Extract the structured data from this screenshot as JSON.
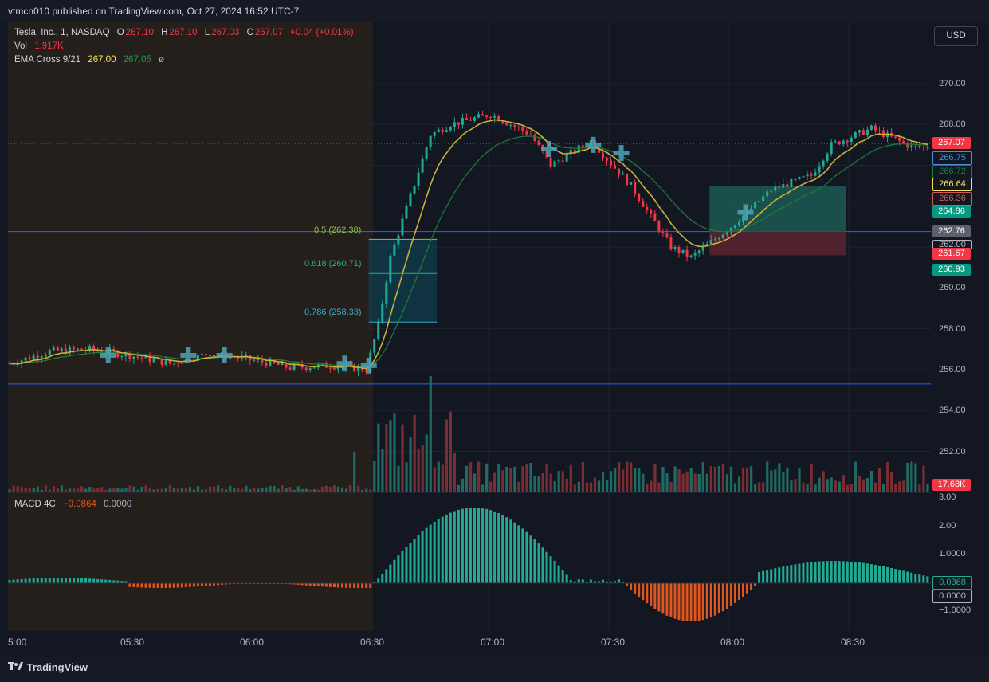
{
  "header": {
    "published": "vtmcn010 published on TradingView.com, Oct 27, 2024 16:52 UTC-7"
  },
  "legend": {
    "symbol": "Tesla, Inc., 1, NASDAQ",
    "o_label": "O",
    "o_value": "267.10",
    "h_label": "H",
    "h_value": "267.10",
    "l_label": "L",
    "l_value": "267.03",
    "c_label": "C",
    "c_value": "267.07",
    "change": "+0.04 (+0.01%)",
    "vol_label": "Vol",
    "vol_value": "1.917K",
    "ema_label": "EMA Cross 9/21",
    "ema_fast": "267.00",
    "ema_slow": "267.05",
    "ema_extra": "ø",
    "macd_label": "MACD 4C",
    "macd_value": "−0.0864",
    "macd_zero": "0.0000"
  },
  "currency": "USD",
  "price_axis": [
    "270.00",
    "268.00",
    "266.00",
    "264.00",
    "262.00",
    "260.00",
    "258.00",
    "256.00",
    "254.00",
    "252.00"
  ],
  "price_tags": [
    {
      "text": "267.07",
      "bg": "#f23645",
      "fg": "#ffffff"
    },
    {
      "text": "266.75",
      "bg": "#131722",
      "fg": "#4a90d9"
    },
    {
      "text": "266.72",
      "bg": "#131722",
      "fg": "#1b7f3c"
    },
    {
      "text": "266.64",
      "bg": "#131722",
      "fg": "#f7e35a"
    },
    {
      "text": "266.36",
      "bg": "#131722",
      "fg": "#d45a5a"
    },
    {
      "text": "264.86",
      "bg": "#089981",
      "fg": "#ffffff"
    },
    {
      "text": "262.76",
      "bg": "#5d606b",
      "fg": "#ffffff"
    },
    {
      "text": "262.00",
      "bg": "#131722",
      "fg": "#b2b5be"
    },
    {
      "text": "261.67",
      "bg": "#f23645",
      "fg": "#ffffff"
    },
    {
      "text": "260.93",
      "bg": "#089981",
      "fg": "#ffffff"
    },
    {
      "text": "17.68K",
      "bg": "#f23645",
      "fg": "#ffffff"
    }
  ],
  "macd_axis": [
    "3.00",
    "2.00",
    "1.0000",
    "−1.0000"
  ],
  "macd_tags": [
    {
      "text": "0.0368",
      "bg": "#131722",
      "fg": "#22ab94"
    },
    {
      "text": "0.0000",
      "bg": "#131722",
      "fg": "#b2b5be"
    }
  ],
  "time_axis": [
    "5:00",
    "05:30",
    "06:00",
    "06:30",
    "07:00",
    "07:30",
    "08:00",
    "08:30"
  ],
  "fib_labels": [
    {
      "text": "0.5 (262.38)",
      "color": "#8fbf4a"
    },
    {
      "text": "0.618 (260.71)",
      "color": "#22ab94"
    },
    {
      "text": "0.786 (258.33)",
      "color": "#3aa7c7"
    }
  ],
  "footer": {
    "brand": "TradingView"
  },
  "colors": {
    "up": "#22ab94",
    "down": "#f23645",
    "ema_fast": "#c9b037",
    "ema_slow": "#1b7f3c",
    "hline": "#2962ff",
    "macd_up": "#22ab94",
    "macd_down": "#e0561f"
  },
  "chart_data": {
    "type": "candlestick",
    "symbol": "TSLA",
    "timeframe": "1",
    "y_range": [
      251.0,
      271.0
    ],
    "horizontal_lines": [
      262.76,
      255.3
    ],
    "last_price_line": 267.07,
    "fibonacci": [
      {
        "level": "0.5",
        "price": 262.38
      },
      {
        "level": "0.618",
        "price": 260.71
      },
      {
        "level": "0.786",
        "price": 258.33
      }
    ],
    "close_path": [
      {
        "t": "05:00",
        "p": 256.3
      },
      {
        "t": "05:10",
        "p": 256.9
      },
      {
        "t": "05:20",
        "p": 257.0
      },
      {
        "t": "05:30",
        "p": 256.7
      },
      {
        "t": "05:40",
        "p": 256.3
      },
      {
        "t": "05:50",
        "p": 256.8
      },
      {
        "t": "06:00",
        "p": 256.5
      },
      {
        "t": "06:10",
        "p": 256.1
      },
      {
        "t": "06:20",
        "p": 256.2
      },
      {
        "t": "06:29",
        "p": 256.0
      },
      {
        "t": "06:32",
        "p": 258.2
      },
      {
        "t": "06:35",
        "p": 261.5
      },
      {
        "t": "06:40",
        "p": 264.5
      },
      {
        "t": "06:45",
        "p": 267.5
      },
      {
        "t": "06:50",
        "p": 268.0
      },
      {
        "t": "07:00",
        "p": 268.5
      },
      {
        "t": "07:10",
        "p": 267.5
      },
      {
        "t": "07:15",
        "p": 266.0
      },
      {
        "t": "07:25",
        "p": 267.2
      },
      {
        "t": "07:35",
        "p": 265.0
      },
      {
        "t": "07:45",
        "p": 262.0
      },
      {
        "t": "07:50",
        "p": 261.5
      },
      {
        "t": "08:00",
        "p": 263.0
      },
      {
        "t": "08:10",
        "p": 264.8
      },
      {
        "t": "08:20",
        "p": 265.5
      },
      {
        "t": "08:25",
        "p": 267.0
      },
      {
        "t": "08:35",
        "p": 267.8
      },
      {
        "t": "08:45",
        "p": 266.9
      }
    ]
  }
}
